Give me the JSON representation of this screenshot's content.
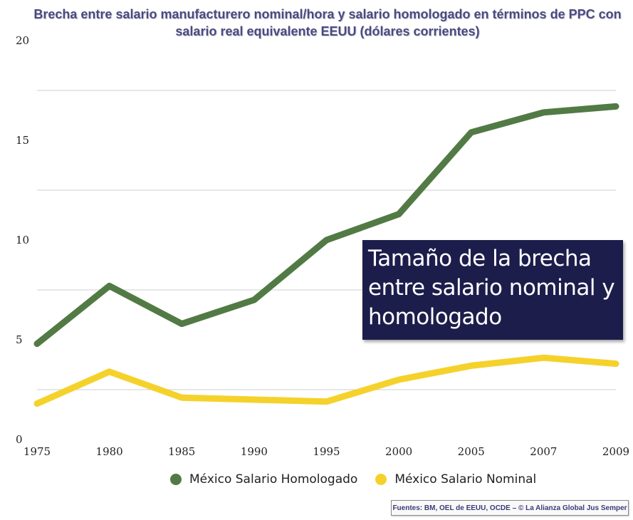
{
  "chart_data": {
    "type": "line",
    "title": "Brecha entre salario manufacturero nominal/hora y salario homologado en términos de PPC con salario real equivalente EEUU (dólares corrientes)",
    "categories": [
      "1975",
      "1980",
      "1985",
      "1990",
      "1995",
      "2000",
      "2005",
      "2007",
      "2009"
    ],
    "series": [
      {
        "name": "México Salario Homologado",
        "color": "#527a45",
        "values": [
          4.8,
          7.7,
          5.8,
          7.0,
          10.0,
          11.3,
          15.4,
          16.4,
          16.7
        ]
      },
      {
        "name": "México Salario Nominal",
        "color": "#f5d22b",
        "values": [
          1.8,
          3.4,
          2.1,
          2.0,
          1.9,
          3.0,
          3.7,
          4.1,
          3.8
        ]
      }
    ],
    "ylim": [
      0,
      20
    ],
    "y_ticks": [
      "0",
      "5",
      "10",
      "15",
      "20"
    ],
    "grid": true,
    "legend_position": "bottom",
    "annotation": "Tamaño de la brecha entre salario nominal y homologado",
    "source": "Fuentes: BM, OEL de EEUU, OCDE – © La Alianza Global Jus Semper"
  }
}
